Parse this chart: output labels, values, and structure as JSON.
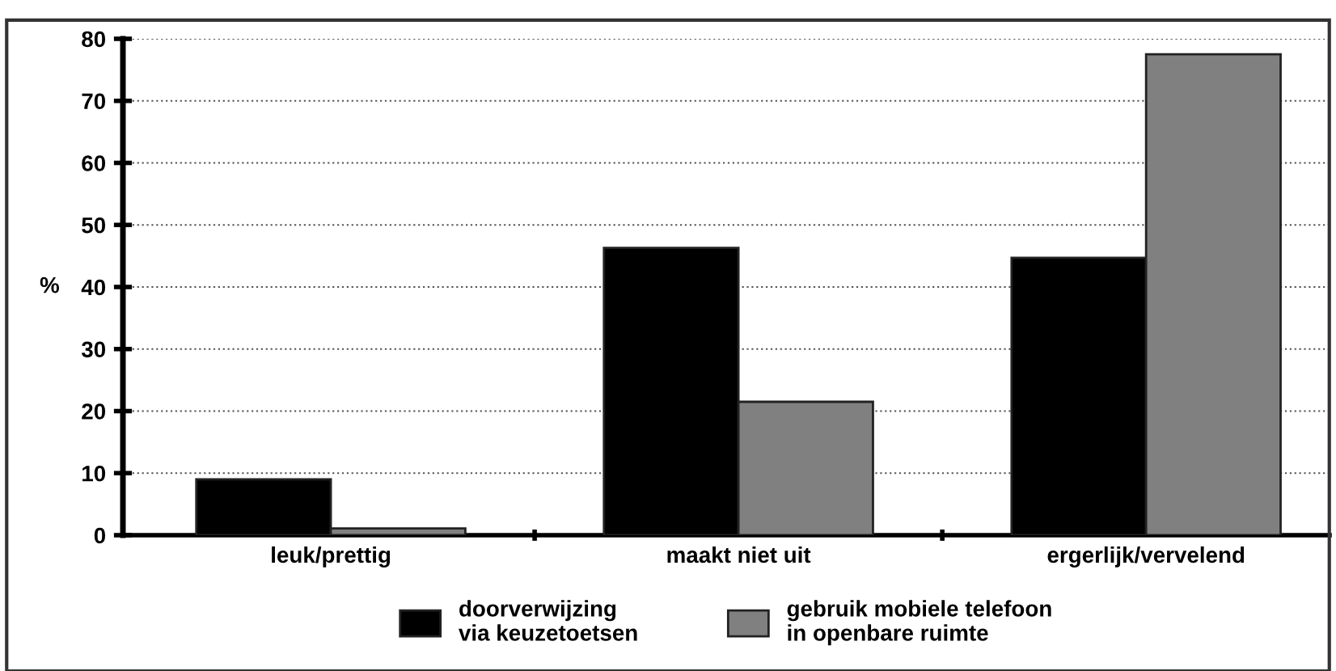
{
  "chart_data": {
    "type": "bar",
    "ylabel": "%",
    "categories": [
      "leuk/prettig",
      "maakt niet uit",
      "ergerlijk/vervelend"
    ],
    "series": [
      {
        "name": "doorverwijzing\nvia keuzetoetsen",
        "color": "#000000",
        "values": [
          9,
          46.3,
          44.7
        ]
      },
      {
        "name": "gebruik mobiele telefoon\nin openbare ruimte",
        "color": "#808080",
        "values": [
          1.1,
          21.5,
          77.5
        ]
      }
    ],
    "ylim": [
      0,
      80
    ],
    "yticks": [
      0,
      10,
      20,
      30,
      40,
      50,
      60,
      70,
      80
    ],
    "grid": "y",
    "legend": "bottom"
  }
}
